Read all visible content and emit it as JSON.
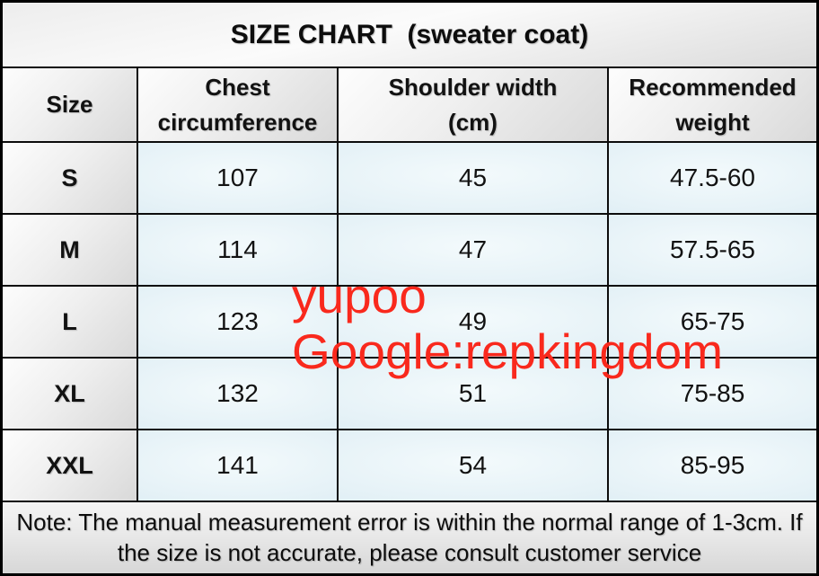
{
  "title": "SIZE CHART  (sweater coat)",
  "chart_data": {
    "type": "table",
    "title": "SIZE CHART  (sweater coat)",
    "columns": [
      "Size",
      "Chest circumference",
      "Shoulder width (cm)",
      "Recommended weight"
    ],
    "rows": [
      [
        "S",
        "107",
        "45",
        "47.5-60"
      ],
      [
        "M",
        "114",
        "47",
        "57.5-65"
      ],
      [
        "L",
        "123",
        "49",
        "65-75"
      ],
      [
        "XL",
        "132",
        "51",
        "75-85"
      ],
      [
        "XXL",
        "141",
        "54",
        "85-95"
      ]
    ],
    "note": "Note: The manual measurement error is within the normal range of 1-3cm. If the size is not accurate, please consult customer service"
  },
  "watermark": {
    "line1": "yupoo",
    "line2": "Google:repkingdom",
    "color": "#f9291d"
  },
  "colors": {
    "grid_line": "#0c0c0c",
    "cell_blue": "#ddeef5",
    "cell_gray": "#e9e9e9",
    "text": "#121212",
    "watermark_red": "#f9291d"
  }
}
